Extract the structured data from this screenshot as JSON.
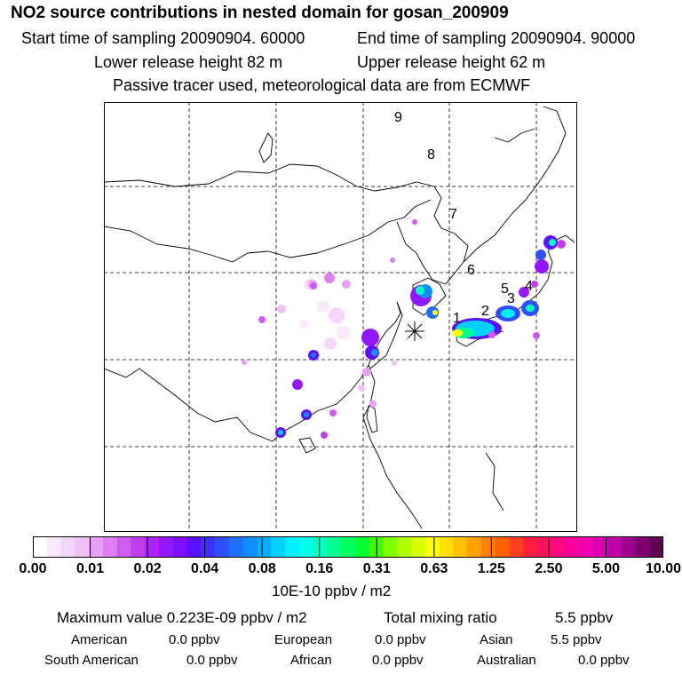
{
  "header": {
    "title": "NO2 source contributions in nested domain for gosan_200909",
    "start": "Start time of sampling 20090904. 60000",
    "end": "End time of sampling 20090904. 90000",
    "lower": "Lower release height   82 m",
    "upper": "Upper release height   62 m",
    "tracer": "Passive tracer used, meteorological data are from ECMWF"
  },
  "map": {
    "trajectory_labels": [
      "1",
      "2",
      "3",
      "4",
      "5",
      "6",
      "7",
      "8",
      "9"
    ],
    "receptor_marker": "star-icon"
  },
  "colorbar": {
    "ticks": [
      "0.00",
      "0.01",
      "0.02",
      "0.04",
      "0.08",
      "0.16",
      "0.31",
      "0.63",
      "1.25",
      "2.50",
      "5.00",
      "10.00"
    ],
    "colors": [
      "#ffffff",
      "#fbe9fb",
      "#f6d6f8",
      "#f0c0f6",
      "#e8a0f4",
      "#dd7ef2",
      "#cf5cf0",
      "#bf3cef",
      "#b020ff",
      "#9418ff",
      "#7a10ff",
      "#5c10ff",
      "#4030ff",
      "#3050ff",
      "#2070ff",
      "#1090ff",
      "#00b0ff",
      "#00d0ff",
      "#00f0ff",
      "#00ffe8",
      "#00ffc0",
      "#00ff90",
      "#00ff60",
      "#00ff30",
      "#40ff00",
      "#80ff00",
      "#b0ff00",
      "#d8ff00",
      "#ffff00",
      "#ffe000",
      "#ffc000",
      "#ffa000",
      "#ff8000",
      "#ff6000",
      "#ff4020",
      "#ff2040",
      "#ff1060",
      "#ff0a80",
      "#ff00a0",
      "#f000b0",
      "#d800b0",
      "#c000a8",
      "#a00090",
      "#800070",
      "#600050"
    ],
    "units": "10E-10 ppbv / m2"
  },
  "summary": {
    "max_label": "Maximum value  0.223E-09 ppbv / m2",
    "total_label": "Total mixing ratio",
    "total_value": "5.5 ppbv",
    "regions": [
      {
        "name": "American",
        "value": "0.0 ppbv"
      },
      {
        "name": "European",
        "value": "0.0 ppbv"
      },
      {
        "name": "Asian",
        "value": "5.5 ppbv"
      },
      {
        "name": "South American",
        "value": "0.0 ppbv"
      },
      {
        "name": "African",
        "value": "0.0 ppbv"
      },
      {
        "name": "Australian",
        "value": "0.0 ppbv"
      }
    ]
  }
}
